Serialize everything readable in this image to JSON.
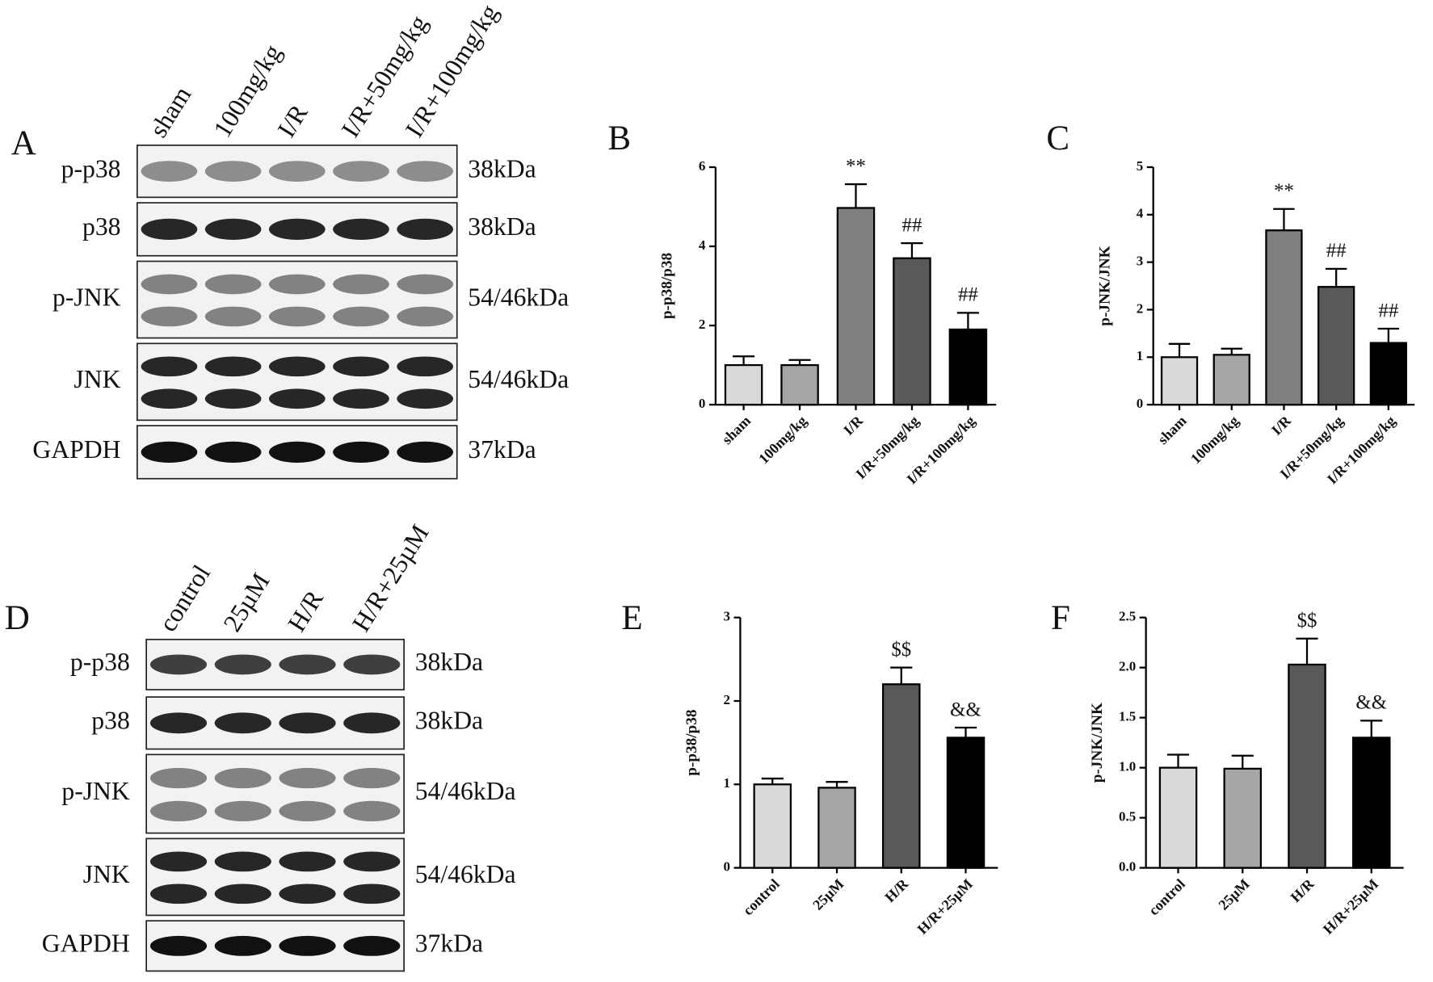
{
  "blots": [
    {
      "panel": "A",
      "lanes": [
        "sham",
        "100mg/kg",
        "I/R",
        "I/R+50mg/kg",
        "I/R+100mg/kg"
      ],
      "rows": [
        {
          "protein": "p-p38",
          "size": "38kDa"
        },
        {
          "protein": "p38",
          "size": "38kDa"
        },
        {
          "protein": "p-JNK",
          "size": "54/46kDa"
        },
        {
          "protein": "JNK",
          "size": "54/46kDa"
        },
        {
          "protein": "GAPDH",
          "size": "37kDa"
        }
      ]
    },
    {
      "panel": "D",
      "lanes": [
        "control",
        "25µM",
        "H/R",
        "H/R+25µM"
      ],
      "rows": [
        {
          "protein": "p-p38",
          "size": "38kDa"
        },
        {
          "protein": "p38",
          "size": "38kDa"
        },
        {
          "protein": "p-JNK",
          "size": "54/46kDa"
        },
        {
          "protein": "JNK",
          "size": "54/46kDa"
        },
        {
          "protein": "GAPDH",
          "size": "37kDa"
        }
      ]
    }
  ],
  "chart_data": [
    {
      "type": "bar",
      "panel": "B",
      "y_label": "p-p38/p38",
      "categories": [
        "sham",
        "100mg/kg",
        "I/R",
        "I/R+50mg/kg",
        "I/R+100mg/kg"
      ],
      "values": [
        1.0,
        1.0,
        4.97,
        3.7,
        1.9
      ],
      "errors": [
        0.22,
        0.13,
        0.6,
        0.38,
        0.42
      ],
      "colors": [
        "#d9d9d9",
        "#a6a6a6",
        "#7f7f7f",
        "#595959",
        "#000000"
      ],
      "annotations": [
        null,
        null,
        "**",
        "##",
        "##"
      ],
      "ylim": [
        0,
        6
      ],
      "yticks": [
        0,
        2,
        4,
        6
      ]
    },
    {
      "type": "bar",
      "panel": "C",
      "y_label": "p-JNK/JNK",
      "categories": [
        "sham",
        "100mg/kg",
        "I/R",
        "I/R+50mg/kg",
        "I/R+100mg/kg"
      ],
      "values": [
        1.0,
        1.05,
        3.67,
        2.48,
        1.3
      ],
      "errors": [
        0.28,
        0.13,
        0.45,
        0.38,
        0.3
      ],
      "colors": [
        "#d9d9d9",
        "#a6a6a6",
        "#7f7f7f",
        "#595959",
        "#000000"
      ],
      "annotations": [
        null,
        null,
        "**",
        "##",
        "##"
      ],
      "ylim": [
        0,
        5
      ],
      "yticks": [
        0,
        1,
        2,
        3,
        4,
        5
      ]
    },
    {
      "type": "bar",
      "panel": "E",
      "y_label": "p-p38/p38",
      "categories": [
        "control",
        "25µM",
        "H/R",
        "H/R+25µM"
      ],
      "values": [
        1.0,
        0.96,
        2.2,
        1.56
      ],
      "errors": [
        0.07,
        0.07,
        0.2,
        0.12
      ],
      "colors": [
        "#d9d9d9",
        "#a6a6a6",
        "#595959",
        "#000000"
      ],
      "annotations": [
        null,
        null,
        "$$",
        "&&"
      ],
      "ylim": [
        0,
        3
      ],
      "yticks": [
        0,
        1,
        2,
        3
      ]
    },
    {
      "type": "bar",
      "panel": "F",
      "y_label": "p-JNK/JNK",
      "categories": [
        "control",
        "25µM",
        "H/R",
        "H/R+25µM"
      ],
      "values": [
        1.0,
        0.99,
        2.03,
        1.3
      ],
      "errors": [
        0.13,
        0.13,
        0.26,
        0.17
      ],
      "colors": [
        "#d9d9d9",
        "#a6a6a6",
        "#595959",
        "#000000"
      ],
      "annotations": [
        null,
        null,
        "$$",
        "&&"
      ],
      "ylim": [
        0,
        2.5
      ],
      "yticks": [
        {
          "value": 0,
          "label": "0.0"
        },
        {
          "value": 0.5,
          "label": "0.5"
        },
        {
          "value": 1,
          "label": "1.0"
        },
        1.5,
        {
          "value": 2,
          "label": "2.0"
        },
        {
          "value": 2.5,
          "label": "2.5"
        }
      ]
    }
  ]
}
